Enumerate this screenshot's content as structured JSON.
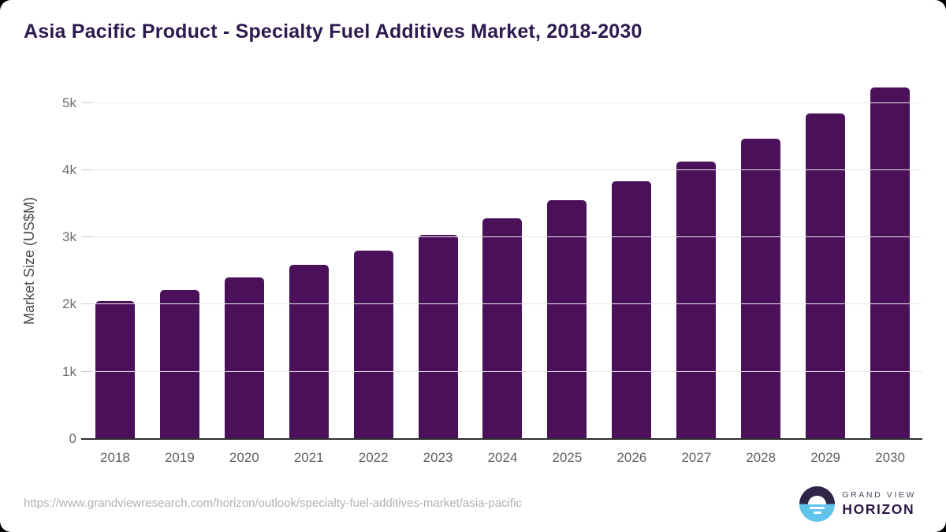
{
  "title": "Asia Pacific Product - Specialty Fuel Additives Market, 2018-2030",
  "source_url": "https://www.grandviewresearch.com/horizon/outlook/specialty-fuel-additives-market/asia-pacific",
  "logo": {
    "line1": "GRAND VIEW",
    "line2": "HORIZON"
  },
  "colors": {
    "bar": "#4a115a",
    "title": "#2d1a4e",
    "gridline": "#e9e9e9",
    "tick": "#c9c9c9",
    "axis_line": "#2f2f2f",
    "url": "#b1b1b1",
    "logo_dark": "#2e2547",
    "logo_blue": "#5fc3ea",
    "logo_gray": "#4e4760",
    "logo_purple": "#2c1745"
  },
  "chart_data": {
    "type": "bar",
    "title": "Asia Pacific Product - Specialty Fuel Additives Market, 2018-2030",
    "categories": [
      "2018",
      "2019",
      "2020",
      "2021",
      "2022",
      "2023",
      "2024",
      "2025",
      "2026",
      "2027",
      "2028",
      "2029",
      "2030"
    ],
    "values": [
      2050,
      2220,
      2400,
      2590,
      2800,
      3040,
      3280,
      3550,
      3830,
      4130,
      4470,
      4840,
      5230
    ],
    "xlabel": "",
    "ylabel": "Market Size (US$M)",
    "ylim": [
      0,
      5300
    ],
    "yticks": [
      {
        "value": 0,
        "label": "0"
      },
      {
        "value": 1000,
        "label": "1k"
      },
      {
        "value": 2000,
        "label": "2k"
      },
      {
        "value": 3000,
        "label": "3k"
      },
      {
        "value": 4000,
        "label": "4k"
      },
      {
        "value": 5000,
        "label": "5k"
      }
    ],
    "grid": true,
    "legend": false
  }
}
